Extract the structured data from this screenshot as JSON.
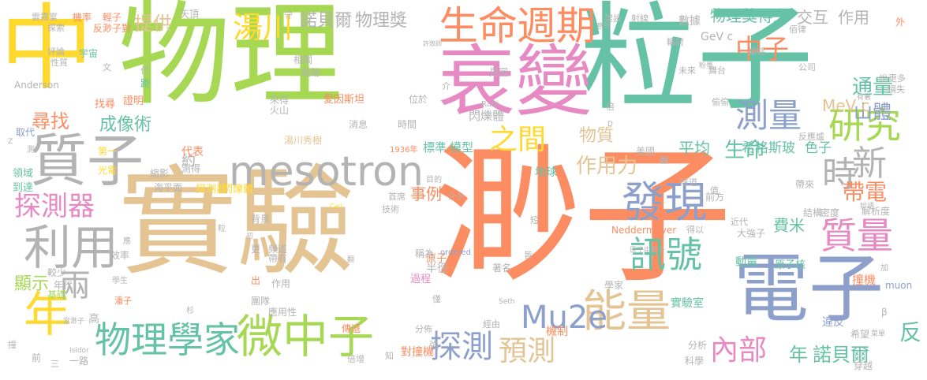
{
  "palette": {
    "orange": "#fc8d62",
    "teal": "#66c2a5",
    "blue": "#8da0cb",
    "pink": "#e78ac3",
    "green": "#a6d854",
    "yellow": "#ffd92f",
    "tan": "#e5c494",
    "gray": "#b3b3b3"
  },
  "words": [
    {
      "text": "中",
      "color": "yellow"
    },
    {
      "text": "物理",
      "color": "green"
    },
    {
      "text": "粒子",
      "color": "teal"
    },
    {
      "text": "衰變",
      "color": "pink"
    },
    {
      "text": "實驗",
      "color": "tan"
    },
    {
      "text": "渺子",
      "color": "orange"
    },
    {
      "text": "電子",
      "color": "blue"
    },
    {
      "text": "質子",
      "color": "gray"
    },
    {
      "text": "mesotron",
      "color": "gray"
    },
    {
      "text": "生命",
      "color": "orange"
    },
    {
      "text": "週期",
      "color": "orange"
    },
    {
      "text": "湯川",
      "color": "yellow"
    },
    {
      "text": "諾貝爾",
      "color": "gray"
    },
    {
      "text": "物理獎",
      "color": "gray"
    },
    {
      "text": "中子",
      "color": "orange"
    },
    {
      "text": "測量",
      "color": "blue"
    },
    {
      "text": "研究",
      "color": "green"
    },
    {
      "text": "時",
      "color": "gray"
    },
    {
      "text": "新",
      "color": "gray"
    },
    {
      "text": "質量",
      "color": "pink"
    },
    {
      "text": "發現",
      "color": "blue"
    },
    {
      "text": "訊號",
      "color": "teal"
    },
    {
      "text": "能量",
      "color": "tan"
    },
    {
      "text": "物理學家",
      "color": "teal"
    },
    {
      "text": "微中子",
      "color": "green"
    },
    {
      "text": "探測",
      "color": "blue"
    },
    {
      "text": "預測",
      "color": "tan"
    },
    {
      "text": "Mu2e",
      "color": "blue"
    },
    {
      "text": "年",
      "color": "yellow"
    },
    {
      "text": "利用",
      "color": "gray"
    },
    {
      "text": "探測器",
      "color": "pink"
    },
    {
      "text": "兩",
      "color": "gray"
    },
    {
      "text": "內部",
      "color": "pink"
    },
    {
      "text": "之間",
      "color": "yellow"
    },
    {
      "text": "平均",
      "color": "teal"
    },
    {
      "text": "生命",
      "color": "teal"
    },
    {
      "text": "作用力",
      "color": "tan"
    },
    {
      "text": "帶電",
      "color": "orange"
    },
    {
      "text": "通量",
      "color": "teal"
    },
    {
      "text": "山體",
      "color": "blue"
    },
    {
      "text": "MeV c",
      "color": "tan"
    },
    {
      "text": "提供",
      "color": "tan"
    },
    {
      "text": "物理獎",
      "color": "teal"
    },
    {
      "text": "得主",
      "color": "teal"
    },
    {
      "text": "交互",
      "color": "gray"
    },
    {
      "text": "作用",
      "color": "gray"
    },
    {
      "text": "尋找",
      "color": "orange"
    },
    {
      "text": "成像術",
      "color": "teal"
    },
    {
      "text": "事例",
      "color": "orange"
    },
    {
      "text": "物質",
      "color": "tan"
    },
    {
      "text": "費米",
      "color": "teal"
    },
    {
      "text": "年",
      "color": "teal"
    },
    {
      "text": "諾貝爾",
      "color": "teal"
    },
    {
      "text": "反",
      "color": "teal"
    },
    {
      "text": "顯示",
      "color": "green"
    },
    {
      "text": "閃爍體",
      "color": "gray"
    },
    {
      "text": "標準",
      "color": "teal"
    },
    {
      "text": "模型",
      "color": "teal"
    },
    {
      "text": "希格斯玻",
      "color": "teal"
    },
    {
      "text": "色子",
      "color": "teal"
    },
    {
      "text": "數據",
      "color": "gray"
    },
    {
      "text": "探測器",
      "color": "yellow"
    },
    {
      "text": "閃爍體",
      "color": "yellow"
    },
    {
      "text": "約",
      "color": "gray"
    },
    {
      "text": "代表",
      "color": "orange"
    },
    {
      "text": "GeV c",
      "color": "gray"
    },
    {
      "text": "原子",
      "color": "orange"
    },
    {
      "text": "撞機",
      "color": "orange"
    },
    {
      "text": "對撞機",
      "color": "orange"
    },
    {
      "text": "過程",
      "color": "pink"
    },
    {
      "text": "半徑",
      "color": "gray"
    },
    {
      "text": "原子核",
      "color": "teal"
    },
    {
      "text": "機制",
      "color": "orange"
    },
    {
      "text": "實驗室",
      "color": "teal"
    },
    {
      "text": "動量",
      "color": "teal"
    },
    {
      "text": "地球",
      "color": "teal"
    },
    {
      "text": "違反",
      "color": "blue"
    },
    {
      "text": "Anderson",
      "color": "gray"
    },
    {
      "text": "Neddermeyer",
      "color": "orange"
    },
    {
      "text": "宇宙",
      "color": "teal"
    },
    {
      "text": "天頂",
      "color": "gray"
    },
    {
      "text": "領域",
      "color": "teal"
    },
    {
      "text": "到達",
      "color": "teal"
    },
    {
      "text": "湯川秀樹",
      "color": "tan"
    },
    {
      "text": "愛因斯坦",
      "color": "orange"
    },
    {
      "text": "火山",
      "color": "gray"
    },
    {
      "text": "來得",
      "color": "gray"
    },
    {
      "text": "消息",
      "color": "gray"
    },
    {
      "text": "時間",
      "color": "gray"
    },
    {
      "text": "美國",
      "color": "gray"
    },
    {
      "text": "前方",
      "color": "gray"
    },
    {
      "text": "帶來",
      "color": "gray"
    },
    {
      "text": "大強子",
      "color": "gray"
    },
    {
      "text": "結構",
      "color": "gray"
    },
    {
      "text": "密度",
      "color": "gray"
    },
    {
      "text": "解析度",
      "color": "gray"
    },
    {
      "text": "muon",
      "color": "blue"
    },
    {
      "text": "分析",
      "color": "gray"
    },
    {
      "text": "科學",
      "color": "gray"
    },
    {
      "text": "穿越",
      "color": "gray"
    },
    {
      "text": "希望",
      "color": "gray"
    },
    {
      "text": "學家",
      "color": "gray"
    },
    {
      "text": "著名",
      "color": "gray"
    },
    {
      "text": "皆",
      "color": "gray"
    },
    {
      "text": "稱為",
      "color": "gray"
    },
    {
      "text": "經由",
      "color": "gray"
    },
    {
      "text": "分佈",
      "color": "gray"
    },
    {
      "text": "傳遞",
      "color": "orange"
    },
    {
      "text": "強",
      "color": "gray"
    },
    {
      "text": "知",
      "color": "gray"
    },
    {
      "text": "倍增",
      "color": "gray"
    },
    {
      "text": "一路",
      "color": "gray"
    },
    {
      "text": "前",
      "color": "gray"
    },
    {
      "text": "三",
      "color": "gray"
    },
    {
      "text": "撞",
      "color": "gray"
    },
    {
      "text": "高",
      "color": "gray"
    },
    {
      "text": "基礎",
      "color": "green"
    },
    {
      "text": "年代",
      "color": "gray"
    },
    {
      "text": "較少",
      "color": "gray"
    },
    {
      "text": "效率",
      "color": "gray"
    },
    {
      "text": "背景",
      "color": "gray"
    },
    {
      "text": "頻道",
      "color": "gray"
    },
    {
      "text": "帶有",
      "color": "gray"
    },
    {
      "text": "應用性",
      "color": "gray"
    },
    {
      "text": "團隊",
      "color": "gray"
    },
    {
      "text": "出",
      "color": "orange"
    },
    {
      "text": "作用",
      "color": "gray"
    },
    {
      "text": "更",
      "color": "gray"
    },
    {
      "text": "海平面",
      "color": "gray"
    },
    {
      "text": "縮影",
      "color": "gray"
    },
    {
      "text": "測得",
      "color": "gray"
    },
    {
      "text": "光電",
      "color": "yellow"
    },
    {
      "text": "第一",
      "color": "yellow"
    },
    {
      "text": "取代",
      "color": "blue"
    },
    {
      "text": "證明",
      "color": "orange"
    },
    {
      "text": "找尋",
      "color": "orange"
    },
    {
      "text": "跨",
      "color": "teal"
    },
    {
      "text": "代",
      "color": "gray"
    },
    {
      "text": "性質",
      "color": "gray"
    },
    {
      "text": "評論",
      "color": "gray"
    },
    {
      "text": "探索",
      "color": "gray"
    },
    {
      "text": "雲霧室",
      "color": "gray"
    },
    {
      "text": "機率",
      "color": "orange"
    },
    {
      "text": "輕子",
      "color": "orange"
    },
    {
      "text": "反渺子對",
      "color": "orange"
    },
    {
      "text": "文",
      "color": "gray"
    },
    {
      "text": "守",
      "color": "gray"
    },
    {
      "text": "相關",
      "color": "gray"
    },
    {
      "text": "蹤跡",
      "color": "gray"
    },
    {
      "text": "許敗師",
      "color": "gray"
    },
    {
      "text": "見圖",
      "color": "gray"
    },
    {
      "text": "位於",
      "color": "gray"
    },
    {
      "text": "介",
      "color": "gray"
    },
    {
      "text": "Rabi",
      "color": "gray"
    },
    {
      "text": "1936年",
      "color": "orange"
    },
    {
      "text": "倍",
      "color": "gray"
    },
    {
      "text": "架設",
      "color": "gray"
    },
    {
      "text": "射線",
      "color": "gray"
    },
    {
      "text": "輻射",
      "color": "gray"
    },
    {
      "text": "未來",
      "color": "gray"
    },
    {
      "text": "舞台",
      "color": "gray"
    },
    {
      "text": "損耗",
      "color": "gray"
    },
    {
      "text": "公司",
      "color": "gray"
    },
    {
      "text": "佰律",
      "color": "gray"
    },
    {
      "text": "外",
      "color": "orange"
    },
    {
      "text": "損失",
      "color": "gray"
    },
    {
      "text": "更多",
      "color": "gray"
    },
    {
      "text": "說",
      "color": "gray"
    },
    {
      "text": "偷偷",
      "color": "gray"
    },
    {
      "text": "反應爐",
      "color": "gray"
    },
    {
      "text": "層",
      "color": "gray"
    },
    {
      "text": "味道",
      "color": "gray"
    },
    {
      "text": "值",
      "color": "gray"
    },
    {
      "text": "近代",
      "color": "gray"
    },
    {
      "text": "得以",
      "color": "gray"
    },
    {
      "text": "短",
      "color": "gray"
    },
    {
      "text": "首席",
      "color": "gray"
    },
    {
      "text": "技術",
      "color": "gray"
    },
    {
      "text": "目的",
      "color": "gray"
    },
    {
      "text": "ordered",
      "color": "blue"
    },
    {
      "text": "原子由質子",
      "color": "gray"
    },
    {
      "text": "β",
      "color": "gray"
    },
    {
      "text": "加",
      "color": "gray"
    },
    {
      "text": "僅",
      "color": "gray"
    },
    {
      "text": "Seth",
      "color": "gray"
    },
    {
      "text": "Isidor",
      "color": "gray"
    },
    {
      "text": "當渺子",
      "color": "gray"
    },
    {
      "text": "潘子",
      "color": "orange"
    },
    {
      "text": "學生",
      "color": "gray"
    },
    {
      "text": "杉",
      "color": "gray"
    },
    {
      "text": "粒",
      "color": "gray"
    },
    {
      "text": "初",
      "color": "gray"
    },
    {
      "text": "翻",
      "color": "gray"
    },
    {
      "text": "應",
      "color": "gray"
    },
    {
      "text": "Carl",
      "color": "yellow"
    },
    {
      "text": "介子",
      "color": "gray"
    },
    {
      "text": "菜單",
      "color": "gray"
    },
    {
      "text": "層",
      "color": "gray"
    },
    {
      "text": "D",
      "color": "gray"
    },
    {
      "text": "Z",
      "color": "gray"
    },
    {
      "text": "測",
      "color": "gray"
    },
    {
      "text": "意外",
      "color": "gray"
    },
    {
      "text": "粉墨",
      "color": "gray"
    },
    {
      "text": "有著",
      "color": "gray"
    },
    {
      "text": "妙語",
      "color": "gray"
    }
  ]
}
